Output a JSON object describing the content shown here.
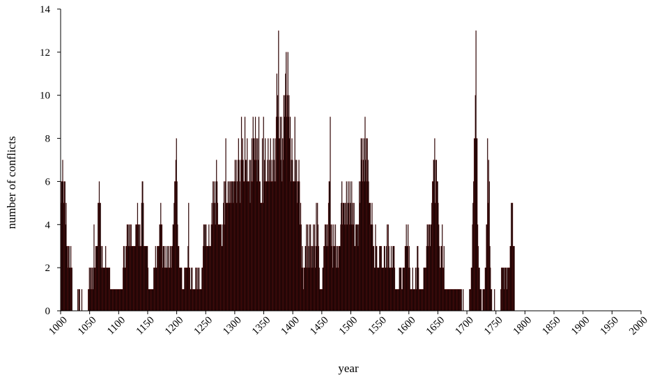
{
  "chart_data": {
    "type": "bar",
    "title": "",
    "xlabel": "year",
    "ylabel": "number of conflicts",
    "xlim": [
      1000,
      2000
    ],
    "ylim": [
      0,
      14
    ],
    "x_ticks": [
      "1000",
      "1050",
      "1100",
      "1150",
      "1200",
      "1250",
      "1300",
      "1350",
      "1400",
      "1450",
      "1500",
      "1550",
      "1600",
      "1650",
      "1700",
      "1750",
      "1800",
      "1850",
      "1900",
      "1950",
      "2000"
    ],
    "y_ticks": [
      "0",
      "2",
      "4",
      "6",
      "8",
      "10",
      "12",
      "14"
    ],
    "grid": false,
    "legend": "none",
    "bar_color": "#000000",
    "bar_edge_color": "#7a1010",
    "series": [
      {
        "x_start": 1000,
        "x_step": 1,
        "values": [
          5,
          6,
          6,
          7,
          6,
          5,
          6,
          6,
          4,
          5,
          3,
          3,
          2,
          3,
          3,
          2,
          2,
          3,
          2,
          2,
          0,
          0,
          0,
          0,
          0,
          0,
          0,
          0,
          0,
          1,
          0,
          1,
          1,
          0,
          0,
          0,
          1,
          0,
          0,
          0,
          0,
          0,
          0,
          0,
          0,
          0,
          0,
          1,
          1,
          2,
          1,
          2,
          2,
          1,
          2,
          1,
          2,
          4,
          2,
          2,
          3,
          3,
          3,
          3,
          5,
          5,
          6,
          5,
          5,
          3,
          2,
          3,
          2,
          2,
          2,
          2,
          2,
          3,
          2,
          2,
          2,
          2,
          2,
          2,
          2,
          1,
          1,
          1,
          1,
          1,
          1,
          1,
          1,
          1,
          1,
          1,
          1,
          1,
          1,
          1,
          1,
          1,
          1,
          1,
          1,
          1,
          1,
          2,
          3,
          3,
          2,
          2,
          3,
          3,
          4,
          4,
          3,
          4,
          3,
          4,
          3,
          4,
          3,
          3,
          3,
          3,
          3,
          3,
          3,
          4,
          4,
          4,
          5,
          4,
          4,
          3,
          4,
          3,
          3,
          5,
          6,
          6,
          5,
          3,
          3,
          3,
          3,
          3,
          3,
          3,
          2,
          1,
          1,
          1,
          1,
          1,
          1,
          1,
          1,
          1,
          2,
          2,
          2,
          3,
          2,
          2,
          3,
          3,
          3,
          3,
          4,
          4,
          5,
          4,
          4,
          2,
          3,
          3,
          3,
          2,
          2,
          3,
          2,
          2,
          3,
          3,
          2,
          2,
          3,
          3,
          2,
          3,
          3,
          4,
          4,
          5,
          6,
          6,
          7,
          8,
          6,
          4,
          3,
          3,
          2,
          2,
          2,
          2,
          2,
          1,
          1,
          1,
          1,
          2,
          2,
          2,
          2,
          2,
          2,
          3,
          5,
          2,
          2,
          1,
          1,
          2,
          2,
          1,
          1,
          1,
          1,
          1,
          2,
          1,
          2,
          1,
          2,
          1,
          2,
          1,
          1,
          1,
          1,
          2,
          2,
          3,
          4,
          4,
          3,
          4,
          4,
          3,
          3,
          3,
          3,
          4,
          3,
          3,
          3,
          4,
          5,
          4,
          6,
          5,
          6,
          5,
          4,
          6,
          7,
          6,
          5,
          4,
          4,
          4,
          4,
          4,
          4,
          3,
          3,
          4,
          5,
          6,
          4,
          6,
          8,
          5,
          5,
          5,
          6,
          5,
          6,
          5,
          6,
          5,
          6,
          6,
          6,
          5,
          6,
          6,
          7,
          6,
          7,
          5,
          6,
          7,
          8,
          7,
          6,
          5,
          7,
          9,
          7,
          8,
          7,
          6,
          6,
          9,
          7,
          7,
          6,
          8,
          6,
          6,
          6,
          7,
          5,
          7,
          6,
          8,
          6,
          9,
          8,
          8,
          7,
          9,
          7,
          8,
          6,
          8,
          7,
          9,
          6,
          6,
          5,
          5,
          5,
          8,
          5,
          9,
          6,
          7,
          8,
          6,
          6,
          6,
          7,
          8,
          6,
          7,
          6,
          8,
          7,
          6,
          6,
          7,
          8,
          6,
          7,
          8,
          6,
          9,
          11,
          10,
          9,
          13,
          8,
          8,
          9,
          7,
          9,
          6,
          8,
          7,
          10,
          9,
          10,
          11,
          12,
          9,
          10,
          12,
          9,
          10,
          8,
          9,
          6,
          7,
          8,
          7,
          6,
          6,
          6,
          9,
          7,
          6,
          7,
          5,
          6,
          6,
          7,
          6,
          4,
          5,
          4,
          2,
          3,
          2,
          1,
          2,
          2,
          3,
          3,
          4,
          2,
          4,
          3,
          2,
          4,
          3,
          4,
          2,
          3,
          3,
          2,
          4,
          3,
          4,
          2,
          3,
          5,
          3,
          5,
          4,
          3,
          2,
          1,
          1,
          1,
          1,
          1,
          2,
          2,
          3,
          3,
          4,
          4,
          3,
          4,
          4,
          3,
          5,
          6,
          6,
          9,
          4,
          3,
          4,
          2,
          3,
          4,
          3,
          3,
          4,
          2,
          3,
          2,
          3,
          2,
          3,
          3,
          3,
          4,
          5,
          6,
          4,
          5,
          5,
          5,
          4,
          5,
          4,
          6,
          4,
          5,
          6,
          5,
          4,
          6,
          5,
          4,
          6,
          4,
          5,
          4,
          5,
          3,
          3,
          4,
          4,
          4,
          4,
          3,
          4,
          6,
          5,
          6,
          8,
          7,
          8,
          6,
          7,
          8,
          6,
          9,
          7,
          8,
          6,
          8,
          7,
          6,
          5,
          5,
          5,
          4,
          4,
          5,
          4,
          3,
          3,
          2,
          2,
          4,
          3,
          3,
          2,
          2,
          2,
          2,
          3,
          3,
          3,
          3,
          2,
          2,
          2,
          2,
          3,
          3,
          2,
          2,
          3,
          4,
          2,
          4,
          3,
          2,
          2,
          2,
          3,
          2,
          2,
          3,
          3,
          3,
          2,
          1,
          1,
          1,
          1,
          1,
          1,
          1,
          2,
          2,
          2,
          2,
          1,
          1,
          2,
          2,
          2,
          2,
          3,
          3,
          4,
          3,
          3,
          4,
          2,
          3,
          2,
          1,
          1,
          1,
          1,
          2,
          1,
          1,
          1,
          1,
          2,
          1,
          2,
          3,
          3,
          2,
          1,
          1,
          1,
          1,
          1,
          1,
          1,
          1,
          2,
          2,
          2,
          2,
          2,
          3,
          4,
          4,
          3,
          4,
          4,
          3,
          4,
          4,
          5,
          6,
          6,
          7,
          7,
          8,
          5,
          7,
          7,
          6,
          6,
          5,
          4,
          3,
          2,
          2,
          3,
          3,
          4,
          2,
          2,
          3,
          1,
          1,
          1,
          1,
          1,
          1,
          1,
          1,
          1,
          1,
          1,
          1,
          1,
          1,
          1,
          1,
          1,
          1,
          1,
          1,
          1,
          1,
          1,
          1,
          1,
          1,
          1,
          1,
          1,
          1,
          0,
          0,
          1,
          0,
          0,
          0,
          0,
          0,
          0,
          0,
          0,
          0,
          0,
          1,
          1,
          1,
          2,
          2,
          4,
          5,
          6,
          8,
          8,
          10,
          13,
          8,
          8,
          4,
          3,
          2,
          2,
          1,
          1,
          1,
          0,
          0,
          1,
          1,
          1,
          1,
          2,
          2,
          4,
          4,
          8,
          5,
          7,
          6,
          3,
          2,
          1,
          1,
          0,
          0,
          0,
          0,
          1,
          0,
          0,
          0,
          0,
          0,
          0,
          0,
          0,
          0,
          0,
          1,
          2,
          2,
          2,
          2,
          2,
          1,
          2,
          2,
          2,
          1,
          2,
          2,
          2,
          2,
          2,
          3,
          3,
          5,
          5,
          5,
          3,
          3,
          3
        ]
      }
    ]
  }
}
